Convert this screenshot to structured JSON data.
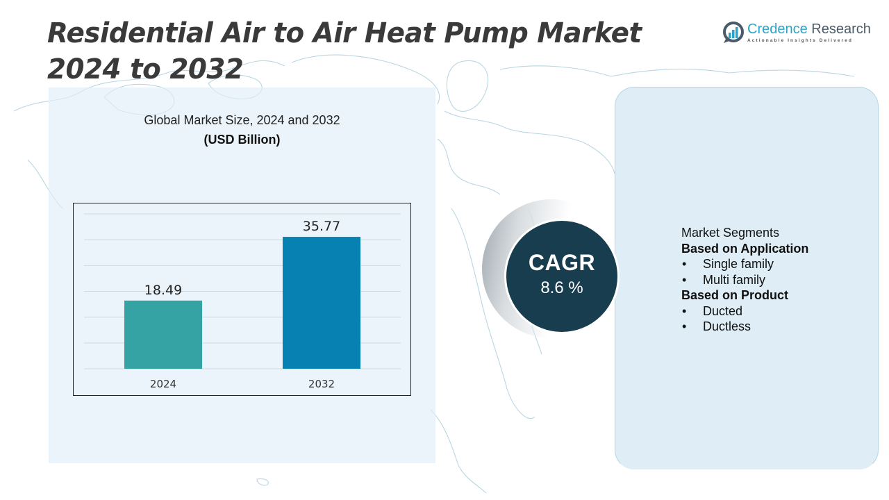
{
  "page": {
    "title": "Residential Air to Air Heat Pump Market 2024 to 2032"
  },
  "logo": {
    "name_part1": "Credence",
    "name_part2": " Research",
    "tagline": "Actionable Insights Delivered",
    "icon": "bar-chart-in-circle-icon",
    "colors": {
      "primary": "#2aa3c9",
      "secondary": "#4a5b6a"
    }
  },
  "chart_data": {
    "type": "bar",
    "title": "Global Market Size, 2024 and 2032",
    "subtitle": "(USD Billion)",
    "categories": [
      "2024",
      "2032"
    ],
    "values": [
      18.49,
      35.77
    ],
    "value_labels": [
      "18.49",
      "35.77"
    ],
    "colors": [
      "#35a3a4",
      "#0681b2"
    ],
    "xlabel": "",
    "ylabel": "",
    "ylim": [
      0,
      42
    ],
    "grid": true,
    "gridline_count": 7,
    "legend": "none"
  },
  "cagr": {
    "label": "CAGR",
    "value": "8.6 %",
    "color": "#173d4f"
  },
  "segments": {
    "title": "Market Segments",
    "groups": [
      {
        "heading": "Based on Application",
        "items": [
          "Single family",
          "Multi family"
        ]
      },
      {
        "heading": "Based on Product",
        "items": [
          "Ducted",
          "Ductless"
        ]
      }
    ],
    "bullet": "•"
  }
}
